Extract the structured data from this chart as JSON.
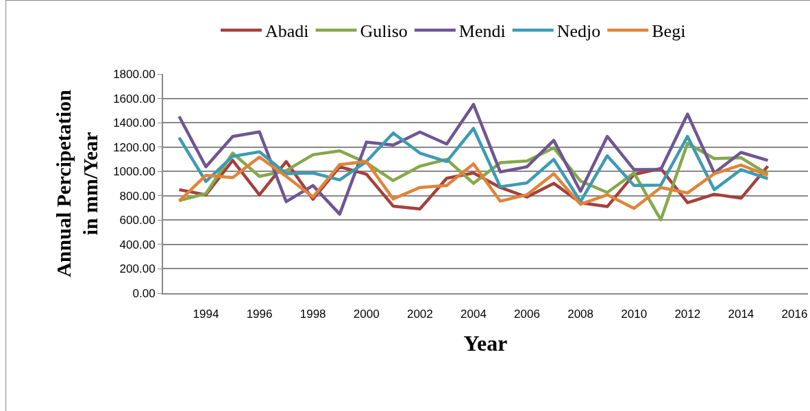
{
  "chart_data": {
    "type": "line",
    "xlabel": "Year",
    "ylabel": "Annual Percipetation in mm/Year",
    "x": [
      1993,
      1994,
      1995,
      1996,
      1997,
      1998,
      1999,
      2000,
      2001,
      2002,
      2003,
      2004,
      2005,
      2006,
      2007,
      2008,
      2009,
      2010,
      2011,
      2012,
      2013,
      2014,
      2015
    ],
    "xlim": [
      1992.4,
      2016.5
    ],
    "xticks": [
      1994,
      1996,
      1998,
      2000,
      2002,
      2004,
      2006,
      2008,
      2010,
      2012,
      2014,
      2016
    ],
    "ylim": [
      0,
      1800
    ],
    "yticks": [
      {
        "value": 0,
        "label": "0.00"
      },
      {
        "value": 200,
        "label": "200.00"
      },
      {
        "value": 400,
        "label": "400.00"
      },
      {
        "value": 600,
        "label": "600.00"
      },
      {
        "value": 800,
        "label": "800.00"
      },
      {
        "value": 1000,
        "label": "1000.00"
      },
      {
        "value": 1200,
        "label": "1200.00"
      },
      {
        "value": 1400,
        "label": "1400.00"
      },
      {
        "value": 1600,
        "label": "1600.00"
      },
      {
        "value": 1800,
        "label": "1800.00"
      }
    ],
    "grid": "y",
    "legend": "top",
    "marker": "none",
    "line_style": "solid",
    "series": [
      {
        "name": "Abadi",
        "color": "#a5403d",
        "values": [
          850,
          808,
          1090,
          808,
          1081,
          771,
          1038,
          977,
          715,
          692,
          944,
          987,
          868,
          790,
          902,
          743,
          711,
          975,
          1024,
          743,
          812,
          780,
          1043
        ]
      },
      {
        "name": "Guliso",
        "color": "#86a84a",
        "values": [
          761,
          818,
          1150,
          959,
          1006,
          1137,
          1169,
          1071,
          925,
          1043,
          1099,
          902,
          1071,
          1086,
          1193,
          921,
          827,
          987,
          602,
          1231,
          1105,
          1112,
          977
        ]
      },
      {
        "name": "Mendi",
        "color": "#6e5693",
        "values": [
          1451,
          1038,
          1287,
          1325,
          752,
          884,
          649,
          1240,
          1216,
          1323,
          1225,
          1550,
          996,
          1038,
          1255,
          837,
          1287,
          1015,
          1015,
          1471,
          987,
          1156,
          1090
        ]
      },
      {
        "name": "Nedjo",
        "color": "#3d9bb2",
        "values": [
          1278,
          917,
          1124,
          1161,
          981,
          987,
          930,
          1081,
          1315,
          1150,
          1081,
          1353,
          874,
          906,
          1099,
          752,
          1128,
          884,
          887,
          1287,
          850,
          1015,
          940
        ]
      },
      {
        "name": "Begi",
        "color": "#e0843a",
        "values": [
          756,
          968,
          949,
          1118,
          959,
          790,
          1056,
          1081,
          774,
          868,
          884,
          1062,
          756,
          808,
          981,
          730,
          808,
          696,
          868,
          823,
          981,
          1052,
          968
        ]
      }
    ]
  }
}
